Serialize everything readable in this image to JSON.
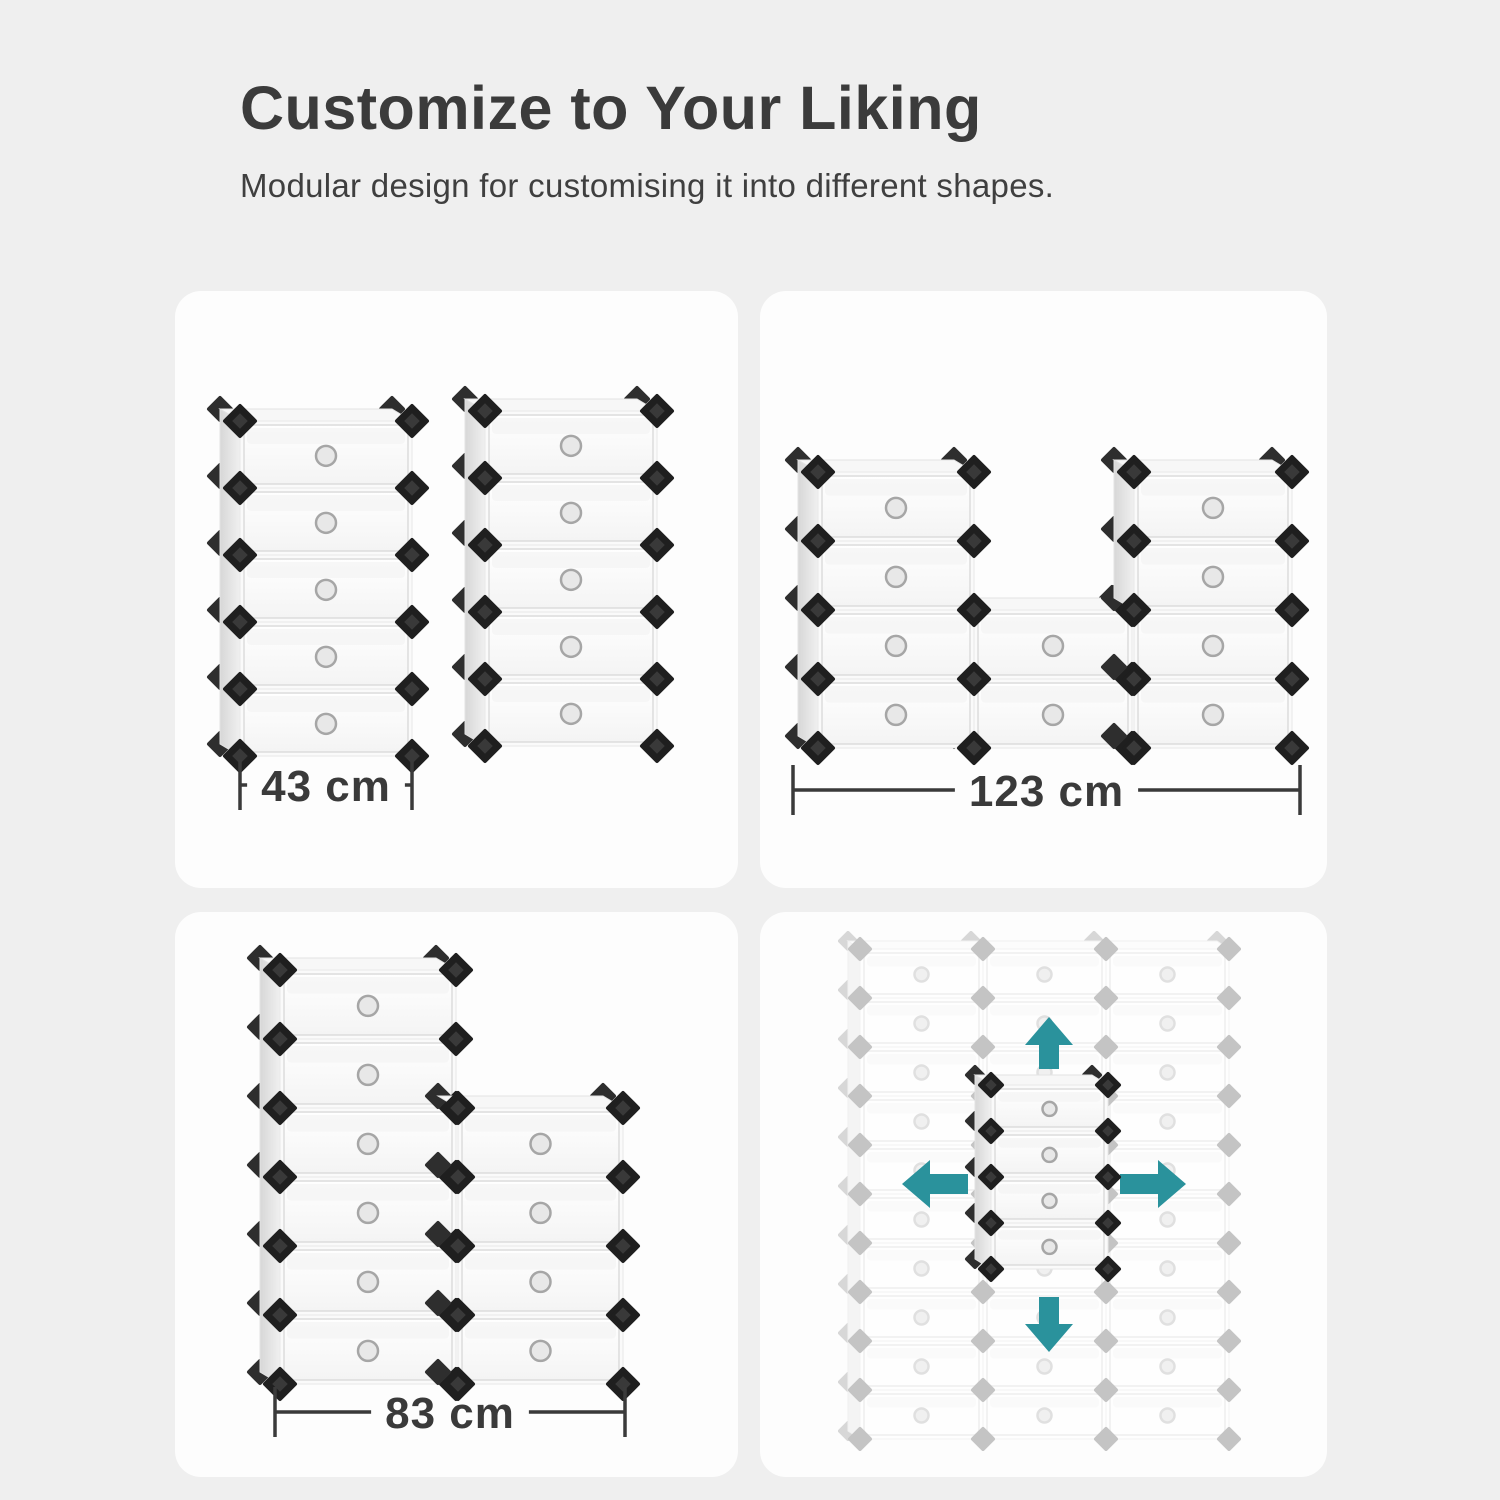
{
  "page": {
    "title": "Customize to Your Liking",
    "subtitle": "Modular design for customising it into different shapes."
  },
  "colors": {
    "background": "#efefef",
    "panel_background": "#fdfdfd",
    "heading_text": "#3b3b3b",
    "subtitle_text": "#3f3f3f",
    "dimension_text": "#3a3a3a",
    "connector_black": "#1f1f1f",
    "connector_ghost": "#c2c2c2",
    "arrow_teal": "#2a929c"
  },
  "panels": {
    "two_towers": {
      "name": "two narrow shoe towers",
      "dimension_label": "43 cm",
      "towers": [
        {
          "columns": 1,
          "rows": 5
        },
        {
          "columns": 1,
          "rows": 5
        }
      ]
    },
    "u_shape": {
      "name": "U-shaped sideboard",
      "dimension_label": "123 cm",
      "towers": [
        {
          "columns": 1,
          "rows": 4
        },
        {
          "columns": 1,
          "rows": 2
        },
        {
          "columns": 1,
          "rows": 4
        }
      ]
    },
    "step_shape": {
      "name": "step-shaped rack",
      "dimension_label": "83 cm",
      "towers": [
        {
          "columns": 1,
          "rows": 6
        },
        {
          "columns": 1,
          "rows": 4
        }
      ]
    },
    "expandable": {
      "name": "expandable ghost grid",
      "ghost_grid": {
        "columns": 3,
        "rows": 10
      },
      "solid_tower": {
        "columns": 1,
        "rows": 4
      },
      "arrow_directions": [
        "up",
        "down",
        "left",
        "right"
      ]
    }
  }
}
